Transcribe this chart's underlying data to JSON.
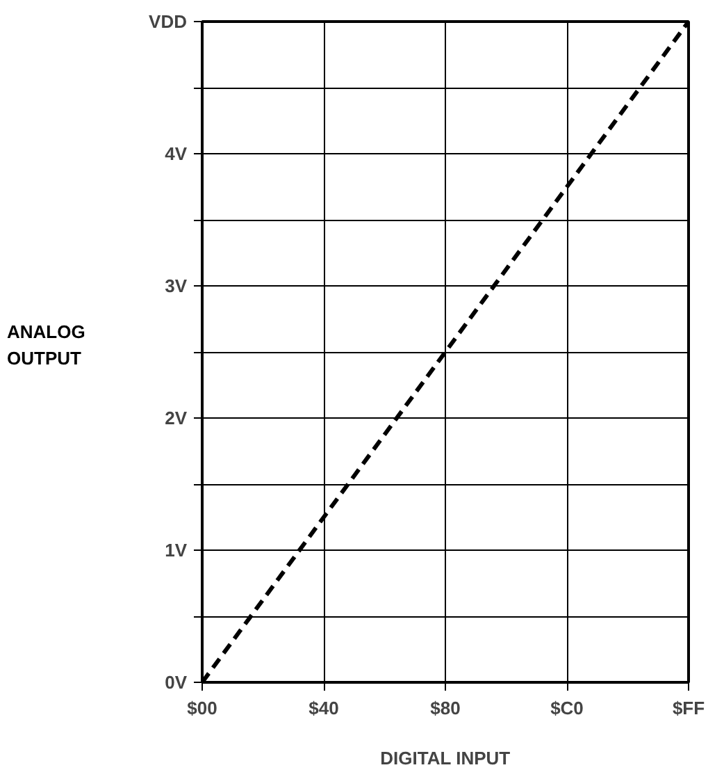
{
  "chart_data": {
    "type": "line",
    "xlabel": "DIGITAL INPUT",
    "ylabel": "ANALOG\nOUTPUT",
    "categories": [
      "$00",
      "$40",
      "$80",
      "$C0",
      "$FF"
    ],
    "series": [
      {
        "color": "#000000",
        "values": [
          0,
          1.25,
          2.5,
          3.75,
          5
        ],
        "line_style": "dashed"
      }
    ],
    "ylim": [
      0,
      5
    ],
    "yticks": [
      {
        "value": 0,
        "label": "0V"
      },
      {
        "value": 0.5,
        "label": null
      },
      {
        "value": 1,
        "label": "1V"
      },
      {
        "value": 1.5,
        "label": null
      },
      {
        "value": 2,
        "label": "2V"
      },
      {
        "value": 2.5,
        "label": null
      },
      {
        "value": 3,
        "label": "3V"
      },
      {
        "value": 3.5,
        "label": null
      },
      {
        "value": 4,
        "label": "4V"
      },
      {
        "value": 4.5,
        "label": null
      },
      {
        "value": 5,
        "label": "VDD"
      }
    ],
    "grid": true,
    "marker": "none"
  }
}
